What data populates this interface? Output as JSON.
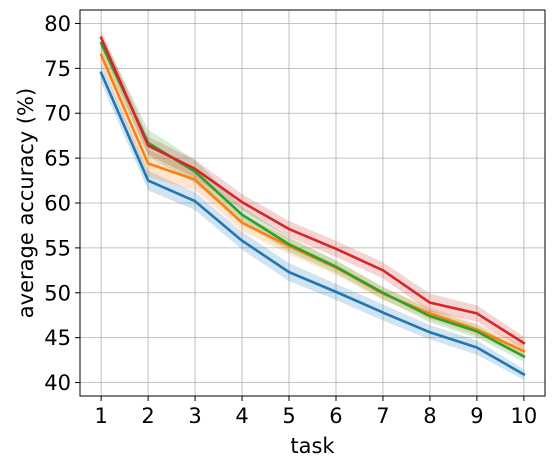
{
  "chart_data": {
    "type": "line",
    "title": "",
    "xlabel": "task",
    "ylabel": "average accuracy (%)",
    "x": [
      1,
      2,
      3,
      4,
      5,
      6,
      7,
      8,
      9,
      10
    ],
    "xlim": [
      0.55,
      10.45
    ],
    "ylim": [
      38.5,
      81.5
    ],
    "xticks": [
      "1",
      "2",
      "3",
      "4",
      "5",
      "6",
      "7",
      "8",
      "9",
      "10"
    ],
    "yticks": [
      40,
      45,
      50,
      55,
      60,
      65,
      70,
      75,
      80
    ],
    "grid": true,
    "legend": "none",
    "series": [
      {
        "color": "#1f77b4",
        "values": [
          74.5,
          62.5,
          60.2,
          55.8,
          52.3,
          50.1,
          47.8,
          45.6,
          43.9,
          40.9
        ],
        "band": [
          1.1,
          1.1,
          1.0,
          1.0,
          1.0,
          0.9,
          0.9,
          0.8,
          0.8,
          0.6
        ]
      },
      {
        "color": "#ff7f0e",
        "values": [
          76.5,
          64.4,
          62.6,
          57.8,
          55.2,
          52.8,
          49.9,
          47.7,
          45.9,
          43.5
        ],
        "band": [
          1.1,
          1.5,
          1.2,
          0.9,
          0.9,
          0.8,
          0.7,
          0.7,
          0.7,
          0.7
        ]
      },
      {
        "color": "#2ca02c",
        "values": [
          77.8,
          66.7,
          63.5,
          58.7,
          55.4,
          52.9,
          50.0,
          47.4,
          45.7,
          42.9
        ],
        "band": [
          1.0,
          1.5,
          1.3,
          0.9,
          0.8,
          0.7,
          0.7,
          0.7,
          0.7,
          0.6
        ]
      },
      {
        "color": "#d62728",
        "values": [
          78.4,
          66.4,
          63.8,
          60.1,
          57.1,
          54.9,
          52.5,
          48.9,
          47.7,
          44.4
        ],
        "band": [
          0.9,
          1.0,
          1.0,
          0.9,
          0.9,
          0.9,
          0.9,
          1.0,
          0.9,
          0.7
        ]
      }
    ]
  }
}
